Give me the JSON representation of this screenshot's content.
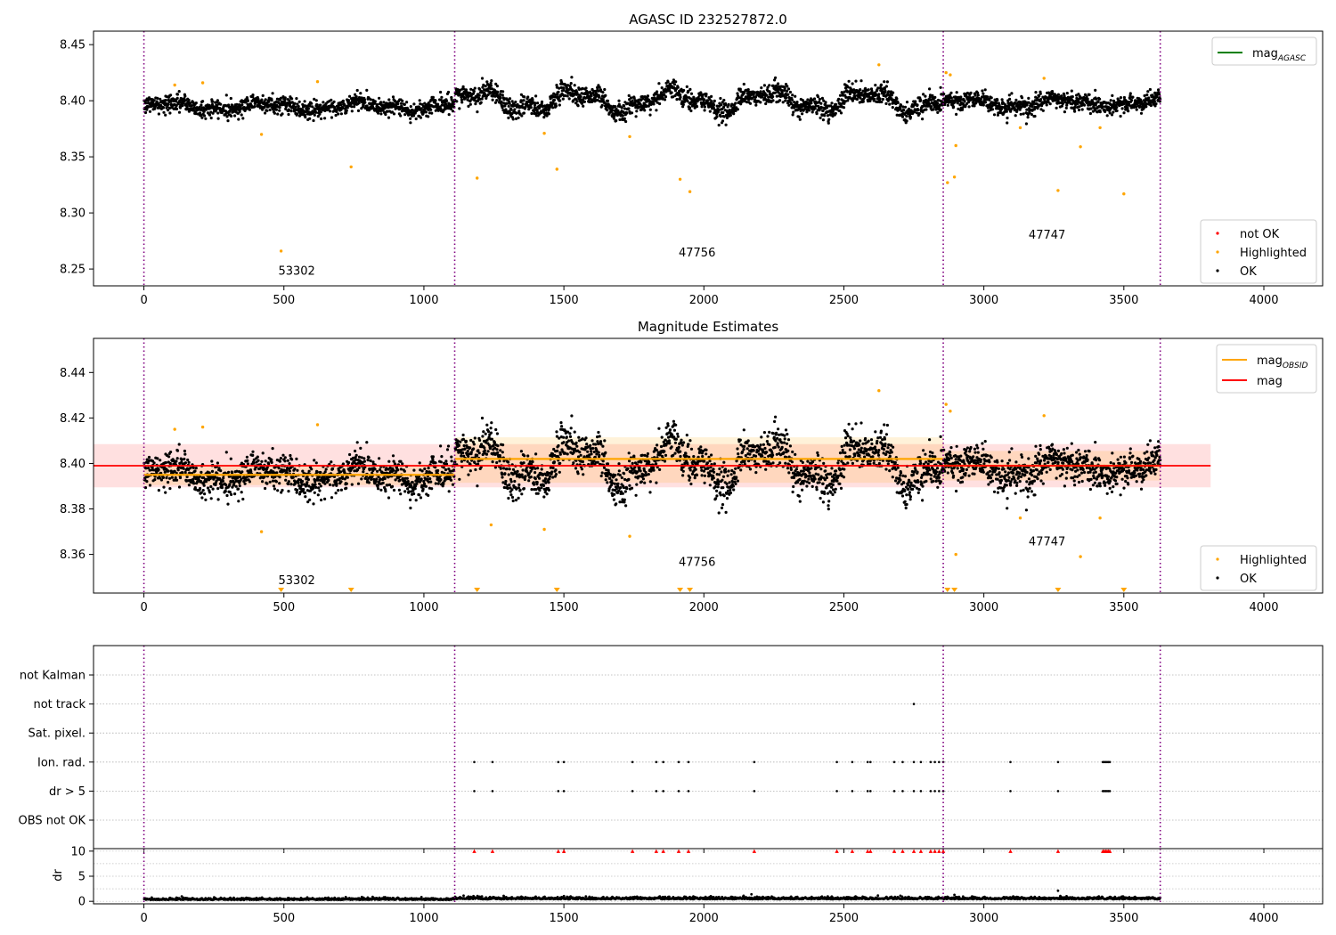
{
  "figure": {
    "title": "AGASC ID 232527872.0",
    "observation_ids": [
      "53302",
      "47756",
      "47747"
    ]
  },
  "chart_data": [
    {
      "type": "scatter",
      "title": "AGASC ID 232527872.0",
      "xlim": [
        -180,
        4210
      ],
      "ylim": [
        8.235,
        8.462
      ],
      "xticks": [
        0,
        500,
        1000,
        1500,
        2000,
        2500,
        3000,
        3500,
        4000
      ],
      "yticks": [
        8.25,
        8.3,
        8.35,
        8.4,
        8.45
      ],
      "ytick_labels": [
        "8.25",
        "8.30",
        "8.35",
        "8.40",
        "8.45"
      ],
      "grid": false,
      "observation_boundaries": [
        0,
        1110,
        2855,
        3630
      ],
      "observation_labels": [
        {
          "text": "53302",
          "x": 480,
          "y": 8.245
        },
        {
          "text": "47756",
          "x": 1910,
          "y": 8.261
        },
        {
          "text": "47747",
          "x": 3160,
          "y": 8.277
        }
      ],
      "legend_lines": [
        {
          "name": "mag",
          "sub": "AGASC",
          "color": "#008000"
        }
      ],
      "legend_points": [
        {
          "name": "not OK",
          "color": "#ff0000"
        },
        {
          "name": "Highlighted",
          "color": "#ffa500"
        },
        {
          "name": "OK",
          "color": "#000000"
        }
      ],
      "segments": [
        {
          "x0": 0,
          "x1": 1110,
          "mean": 8.395,
          "noise": 0.007,
          "ripple": 0.003
        },
        {
          "x0": 1110,
          "x1": 2855,
          "mean": 8.4,
          "noise": 0.008,
          "ripple": 0.008
        },
        {
          "x0": 2855,
          "x1": 3630,
          "mean": 8.398,
          "noise": 0.007,
          "ripple": 0.003
        }
      ],
      "highlighted": [
        {
          "x": 110,
          "y": 8.414
        },
        {
          "x": 210,
          "y": 8.416
        },
        {
          "x": 420,
          "y": 8.37
        },
        {
          "x": 490,
          "y": 8.266
        },
        {
          "x": 620,
          "y": 8.417
        },
        {
          "x": 740,
          "y": 8.341
        },
        {
          "x": 1190,
          "y": 8.331
        },
        {
          "x": 1430,
          "y": 8.371
        },
        {
          "x": 1475,
          "y": 8.339
        },
        {
          "x": 1735,
          "y": 8.368
        },
        {
          "x": 1915,
          "y": 8.33
        },
        {
          "x": 1950,
          "y": 8.319
        },
        {
          "x": 2625,
          "y": 8.432
        },
        {
          "x": 2865,
          "y": 8.425
        },
        {
          "x": 2870,
          "y": 8.327
        },
        {
          "x": 2880,
          "y": 8.423
        },
        {
          "x": 2895,
          "y": 8.332
        },
        {
          "x": 2900,
          "y": 8.36
        },
        {
          "x": 3130,
          "y": 8.376
        },
        {
          "x": 3215,
          "y": 8.42
        },
        {
          "x": 3265,
          "y": 8.32
        },
        {
          "x": 3345,
          "y": 8.359
        },
        {
          "x": 3415,
          "y": 8.376
        },
        {
          "x": 3500,
          "y": 8.317
        }
      ]
    },
    {
      "type": "scatter",
      "title": "Magnitude Estimates",
      "xlim": [
        -180,
        4210
      ],
      "ylim": [
        8.343,
        8.455
      ],
      "xticks": [
        0,
        500,
        1000,
        1500,
        2000,
        2500,
        3000,
        3500,
        4000
      ],
      "yticks": [
        8.36,
        8.38,
        8.4,
        8.42,
        8.44
      ],
      "ytick_labels": [
        "8.36",
        "8.38",
        "8.40",
        "8.42",
        "8.44"
      ],
      "grid": false,
      "observation_boundaries": [
        0,
        1110,
        2855,
        3630
      ],
      "observation_labels": [
        {
          "text": "53302",
          "x": 480,
          "y": 8.347
        },
        {
          "text": "47756",
          "x": 1910,
          "y": 8.355
        },
        {
          "text": "47747",
          "x": 3160,
          "y": 8.364
        }
      ],
      "legend_lines": [
        {
          "name": "mag",
          "sub": "OBSID",
          "color": "#ffa500"
        },
        {
          "name": "mag",
          "sub": "",
          "color": "#ff0000"
        }
      ],
      "legend_points": [
        {
          "name": "Highlighted",
          "color": "#ffa500"
        },
        {
          "name": "OK",
          "color": "#000000"
        }
      ],
      "mag_line": {
        "x0": -180,
        "x1": 3810,
        "value": 8.399,
        "band": [
          8.3895,
          8.4085
        ]
      },
      "obsid_lines": [
        {
          "x0": 0,
          "x1": 1110,
          "value": 8.395,
          "band": [
            8.3905,
            8.3995
          ]
        },
        {
          "x0": 1110,
          "x1": 2855,
          "value": 8.402,
          "band": [
            8.3915,
            8.4115
          ]
        },
        {
          "x0": 2855,
          "x1": 3630,
          "value": 8.399,
          "band": [
            8.3925,
            8.4055
          ]
        }
      ],
      "segments": [
        {
          "x0": 0,
          "x1": 1110,
          "mean": 8.395,
          "noise": 0.007,
          "ripple": 0.003
        },
        {
          "x0": 1110,
          "x1": 2855,
          "mean": 8.4,
          "noise": 0.008,
          "ripple": 0.008
        },
        {
          "x0": 2855,
          "x1": 3630,
          "mean": 8.398,
          "noise": 0.007,
          "ripple": 0.003
        }
      ],
      "highlighted": [
        {
          "x": 110,
          "y": 8.415
        },
        {
          "x": 210,
          "y": 8.416
        },
        {
          "x": 420,
          "y": 8.37
        },
        {
          "x": 620,
          "y": 8.417
        },
        {
          "x": 1240,
          "y": 8.373
        },
        {
          "x": 1430,
          "y": 8.371
        },
        {
          "x": 1735,
          "y": 8.368
        },
        {
          "x": 2625,
          "y": 8.432
        },
        {
          "x": 2865,
          "y": 8.426
        },
        {
          "x": 2880,
          "y": 8.423
        },
        {
          "x": 2900,
          "y": 8.36
        },
        {
          "x": 3130,
          "y": 8.376
        },
        {
          "x": 3215,
          "y": 8.421
        },
        {
          "x": 3345,
          "y": 8.359
        },
        {
          "x": 3415,
          "y": 8.376
        }
      ],
      "below_range_markers": [
        490,
        740,
        1190,
        1475,
        1915,
        1950,
        2870,
        2895,
        3265,
        3500
      ]
    },
    {
      "type": "scatter",
      "title": "",
      "xlim": [
        -180,
        4210
      ],
      "categories": [
        "OBS not OK",
        "dr > 5",
        "Ion. rad.",
        "Sat. pixel.",
        "not track",
        "not Kalman"
      ],
      "grid": true,
      "observation_boundaries": [
        0,
        1110,
        2855,
        3630
      ],
      "flags": {
        "Ion. rad.": [
          1180,
          1245,
          1480,
          1500,
          1745,
          1830,
          1855,
          1910,
          1945,
          2180,
          2475,
          2530,
          2585,
          2595,
          2680,
          2710,
          2750,
          2775,
          2810,
          2825,
          2840,
          2855,
          3095,
          3265,
          3425,
          3430,
          3435,
          3440,
          3445,
          3450
        ],
        "dr > 5": [
          1180,
          1245,
          1480,
          1500,
          1745,
          1830,
          1855,
          1910,
          1945,
          2180,
          2475,
          2530,
          2585,
          2595,
          2680,
          2710,
          2750,
          2775,
          2810,
          2825,
          2840,
          2855,
          3095,
          3265,
          3425,
          3430,
          3435,
          3440,
          3445,
          3450
        ],
        "not track": [
          2750
        ]
      }
    },
    {
      "type": "scatter",
      "title": "",
      "xlim": [
        -180,
        4210
      ],
      "ylim": [
        -0.5,
        10.5
      ],
      "ylabel": "dr",
      "yticks": [
        0,
        5,
        10
      ],
      "ytick_labels": [
        "0",
        "5",
        "10"
      ],
      "xticks": [
        0,
        500,
        1000,
        1500,
        2000,
        2500,
        3000,
        3500,
        4000
      ],
      "grid": true,
      "observation_boundaries": [
        0,
        1110,
        2855,
        3630
      ],
      "clipped_markers": [
        1180,
        1245,
        1480,
        1500,
        1745,
        1830,
        1855,
        1910,
        1945,
        2180,
        2475,
        2530,
        2585,
        2595,
        2680,
        2710,
        2750,
        2775,
        2810,
        2825,
        2840,
        2855,
        3095,
        3265,
        3425,
        3430,
        3435,
        3440,
        3445,
        3450
      ],
      "outliers": [
        {
          "x": 3265,
          "y": 2.1
        },
        {
          "x": 2895,
          "y": 1.3
        },
        {
          "x": 1285,
          "y": 1.1
        },
        {
          "x": 2170,
          "y": 1.4
        }
      ]
    }
  ]
}
